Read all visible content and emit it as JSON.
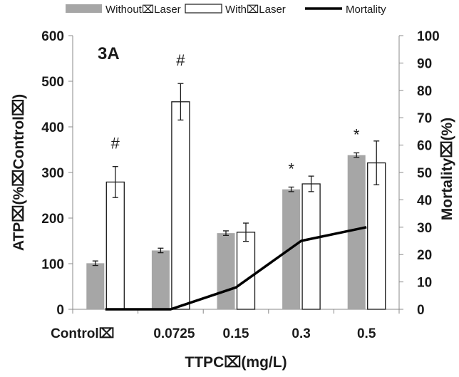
{
  "chart_data": {
    "type": "bar",
    "panel_label": "3A",
    "categories": [
      "Control⌧",
      "0.0725",
      "0.15",
      "0.3",
      "0.5"
    ],
    "xlabel": "TTPC⌧(mg/L)",
    "ylabel": "ATP⌧(%⌧Control⌧)",
    "y2label": "Mortality⌧(%)",
    "ylim": [
      0,
      600
    ],
    "y2lim": [
      0,
      100
    ],
    "y_ticks": [
      "0",
      "100",
      "200",
      "300",
      "400",
      "500",
      "600"
    ],
    "y2_ticks": [
      "0",
      "10",
      "20",
      "30",
      "40",
      "50",
      "60",
      "70",
      "80",
      "90",
      "100"
    ],
    "grid": false,
    "legend_position": "top",
    "series": [
      {
        "name": "Without⌧Laser",
        "kind": "bar",
        "axis": "left",
        "color": "#a6a6a6",
        "values": [
          101,
          129,
          167,
          263,
          338
        ],
        "errors": [
          5,
          5,
          5,
          5,
          5
        ]
      },
      {
        "name": "With⌧Laser",
        "kind": "bar",
        "axis": "left",
        "color": "#ffffff",
        "values": [
          279,
          455,
          169,
          275,
          321
        ],
        "errors": [
          34,
          40,
          20,
          17,
          48
        ]
      },
      {
        "name": "Mortality",
        "kind": "line",
        "axis": "right",
        "color": "#000000",
        "values": [
          0,
          0,
          8,
          25,
          30
        ]
      }
    ],
    "annotations": [
      {
        "category": "Control⌧",
        "series": "With⌧Laser",
        "text": "#"
      },
      {
        "category": "0.0725",
        "series": "With⌧Laser",
        "text": "#"
      },
      {
        "category": "0.3",
        "series": "Without⌧Laser",
        "text": "*"
      },
      {
        "category": "0.5",
        "series": "Without⌧Laser",
        "text": "*"
      }
    ]
  }
}
